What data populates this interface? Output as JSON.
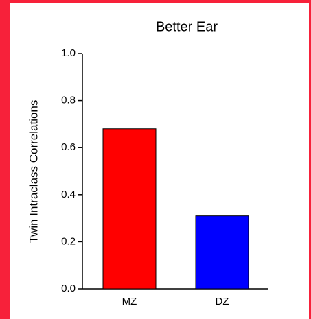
{
  "chart_data": {
    "type": "bar",
    "title": "Better Ear",
    "y_label": "Twin Intraclass Correlations",
    "categories": [
      "MZ",
      "DZ"
    ],
    "values": [
      0.68,
      0.31
    ],
    "colors": [
      "#ff0000",
      "#0000ff"
    ],
    "ylim": [
      0,
      1
    ],
    "yticks": [
      {
        "value": 0,
        "label": "0.0"
      },
      0.2,
      0.4,
      0.6,
      0.8,
      {
        "value": 1,
        "label": "1.0"
      }
    ],
    "grid": false
  }
}
